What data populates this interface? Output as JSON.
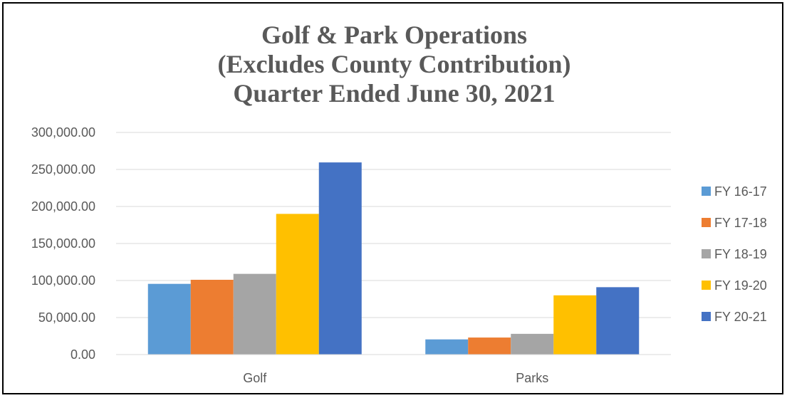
{
  "chart_data": {
    "type": "bar",
    "title_lines": [
      "Golf & Park Operations",
      "(Excludes County Contribution)",
      "Quarter Ended June 30, 2021"
    ],
    "categories": [
      "Golf",
      "Parks"
    ],
    "series": [
      {
        "name": "FY 16-17",
        "color": "#5B9BD5",
        "values": [
          95500,
          20500
        ]
      },
      {
        "name": "FY 17-18",
        "color": "#ED7D31",
        "values": [
          101000,
          23000
        ]
      },
      {
        "name": "FY 18-19",
        "color": "#A5A5A5",
        "values": [
          109000,
          28000
        ]
      },
      {
        "name": "FY 19-20",
        "color": "#FFC000",
        "values": [
          190000,
          80000
        ]
      },
      {
        "name": "FY 20-21",
        "color": "#4472C4",
        "values": [
          259500,
          91000
        ]
      }
    ],
    "ylim": [
      0,
      300000
    ],
    "yticks": [
      0,
      50000,
      100000,
      150000,
      200000,
      250000,
      300000
    ],
    "ytick_labels": [
      "0.00",
      "50,000.00",
      "100,000.00",
      "150,000.00",
      "200,000.00",
      "250,000.00",
      "300,000.00"
    ],
    "grid": true,
    "legend": "right",
    "gridline_color": "#D9D9D9",
    "text_color": "#595959"
  }
}
